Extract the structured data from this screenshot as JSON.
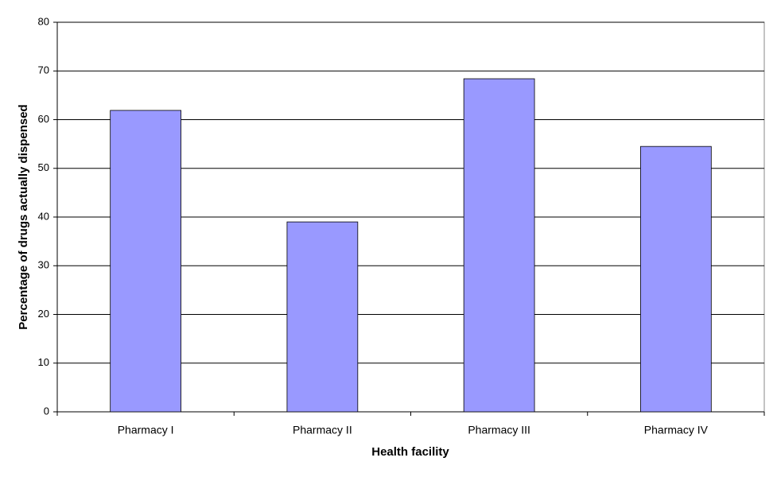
{
  "chart_data": {
    "type": "bar",
    "x_label": "Health facility",
    "y_label": "Percentage of drugs actually dispensed",
    "categories": [
      "Pharmacy I",
      "Pharmacy II",
      "Pharmacy III",
      "Pharmacy IV"
    ],
    "values": [
      61.9,
      39,
      68.4,
      54.5
    ],
    "color": "#9999ff",
    "ylim": [
      0,
      80
    ],
    "yticks": [
      0,
      10,
      20,
      30,
      40,
      50,
      60,
      70,
      80
    ],
    "grid": true
  }
}
